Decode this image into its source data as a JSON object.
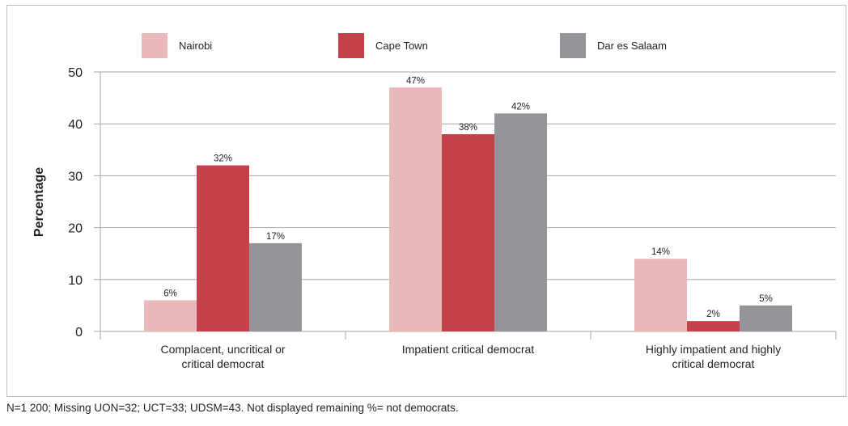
{
  "chart_data": {
    "type": "bar",
    "categories": [
      [
        "Complacent, uncritical or",
        "critical democrat"
      ],
      [
        "Impatient critical democrat"
      ],
      [
        "Highly impatient and highly",
        "critical democrat"
      ]
    ],
    "series": [
      {
        "name": "Nairobi",
        "values": [
          6,
          47,
          14
        ],
        "labels": [
          "6%",
          "47%",
          "14%"
        ],
        "color": "#e8b8bb"
      },
      {
        "name": "Cape Town",
        "values": [
          32,
          38,
          2
        ],
        "labels": [
          "32%",
          "38%",
          "2%"
        ],
        "color": "#c5414a"
      },
      {
        "name": "Dar es Salaam",
        "values": [
          17,
          42,
          5
        ],
        "labels": [
          "17%",
          "42%",
          "5%"
        ],
        "color": "#949599"
      }
    ],
    "ylabel": "Percentage",
    "yticks": [
      0,
      10,
      20,
      30,
      40,
      50
    ],
    "ylim": [
      0,
      50
    ],
    "grid": true,
    "legend": "top"
  },
  "footnote": "N=1 200; Missing UON=32; UCT=33; UDSM=43. Not displayed remaining %= not democrats."
}
